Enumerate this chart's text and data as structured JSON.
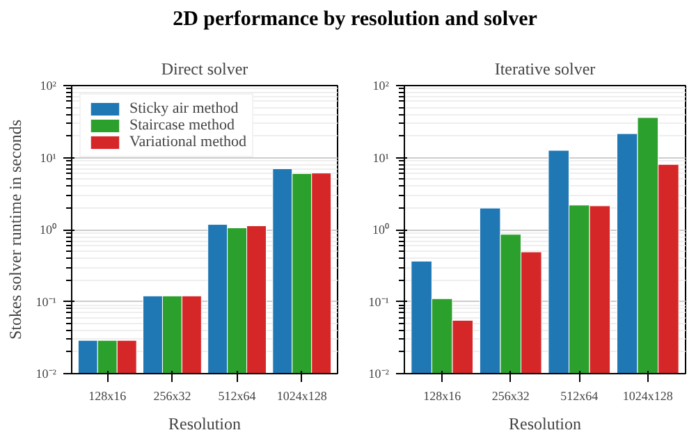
{
  "chart_data": [
    {
      "type": "bar",
      "title": "2D performance by resolution and solver",
      "subtitle": "Direct solver",
      "xlabel": "Resolution",
      "ylabel": "Stokes solver runtime in seconds",
      "categories": [
        "128x16",
        "256x32",
        "512x64",
        "1024x128"
      ],
      "log": "y",
      "ylim": [
        0.01,
        100
      ],
      "yticks": [
        {
          "value": 0.01,
          "label": "10⁻²"
        },
        {
          "value": 0.1,
          "label": "10⁻¹"
        },
        {
          "value": 1,
          "label": "10⁰"
        },
        {
          "value": 10,
          "label": "10¹"
        },
        {
          "value": 100,
          "label": "10²"
        }
      ],
      "grid": "y",
      "legend": "top left",
      "series": [
        {
          "name": "Sticky air method",
          "color": "#1f77b4",
          "values": [
            0.029,
            0.12,
            1.18,
            7.0
          ]
        },
        {
          "name": "Staircase method",
          "color": "#2ca02c",
          "values": [
            0.029,
            0.12,
            1.06,
            6.0
          ]
        },
        {
          "name": "Variational method",
          "color": "#d62728",
          "values": [
            0.029,
            0.12,
            1.13,
            6.1
          ]
        }
      ]
    },
    {
      "type": "bar",
      "subtitle": "Iterative solver",
      "xlabel": "Resolution",
      "categories": [
        "128x16",
        "256x32",
        "512x64",
        "1024x128"
      ],
      "log": "y",
      "ylim": [
        0.01,
        100
      ],
      "yticks": [
        {
          "value": 0.01,
          "label": "10⁻²"
        },
        {
          "value": 0.1,
          "label": "10⁻¹"
        },
        {
          "value": 1,
          "label": "10⁰"
        },
        {
          "value": 10,
          "label": "10¹"
        },
        {
          "value": 100,
          "label": "10²"
        }
      ],
      "grid": "y",
      "series": [
        {
          "color": "#1f77b4",
          "values": [
            0.365,
            1.99,
            12.6,
            21.5
          ]
        },
        {
          "color": "#2ca02c",
          "values": [
            0.11,
            0.86,
            2.19,
            36
          ]
        },
        {
          "color": "#d62728",
          "values": [
            0.055,
            0.49,
            2.14,
            8.05
          ]
        }
      ]
    }
  ]
}
